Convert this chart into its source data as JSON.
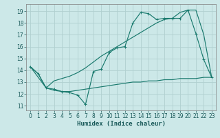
{
  "xlabel": "Humidex (Indice chaleur)",
  "bg_color": "#cce8e8",
  "grid_color": "#b0d0d0",
  "line_color": "#1a7a6e",
  "xlim": [
    -0.5,
    23.5
  ],
  "ylim": [
    10.6,
    19.6
  ],
  "xticks": [
    0,
    1,
    2,
    3,
    4,
    5,
    6,
    7,
    8,
    9,
    10,
    11,
    12,
    13,
    14,
    15,
    16,
    17,
    18,
    19,
    20,
    21,
    22,
    23
  ],
  "yticks": [
    11,
    12,
    13,
    14,
    15,
    16,
    17,
    18,
    19
  ],
  "line1_x": [
    0,
    1,
    2,
    3,
    4,
    5,
    6,
    7,
    8,
    9,
    10,
    11,
    12,
    13,
    14,
    15,
    16,
    17,
    18,
    19,
    20,
    21,
    22,
    23
  ],
  "line1_y": [
    14.3,
    13.7,
    12.5,
    12.4,
    12.2,
    12.1,
    11.9,
    11.1,
    13.9,
    14.1,
    15.5,
    15.9,
    16.0,
    18.0,
    18.9,
    18.8,
    18.3,
    18.4,
    18.4,
    18.4,
    19.1,
    17.1,
    14.9,
    13.4
  ],
  "line2_x": [
    0,
    2,
    3,
    4,
    5,
    6,
    7,
    8,
    9,
    10,
    11,
    12,
    13,
    14,
    15,
    16,
    17,
    18,
    19,
    20,
    21,
    22,
    23
  ],
  "line2_y": [
    14.3,
    12.5,
    13.1,
    13.3,
    13.5,
    13.8,
    14.2,
    14.7,
    15.2,
    15.6,
    16.0,
    16.4,
    16.8,
    17.2,
    17.6,
    18.0,
    18.3,
    18.4,
    18.9,
    19.1,
    19.1,
    17.0,
    13.4
  ],
  "line3_x": [
    0,
    1,
    2,
    3,
    4,
    5,
    6,
    7,
    8,
    9,
    10,
    11,
    12,
    13,
    14,
    15,
    16,
    17,
    18,
    19,
    20,
    21,
    22,
    23
  ],
  "line3_y": [
    14.3,
    13.7,
    12.5,
    12.3,
    12.2,
    12.2,
    12.3,
    12.4,
    12.5,
    12.6,
    12.7,
    12.8,
    12.9,
    13.0,
    13.0,
    13.1,
    13.1,
    13.2,
    13.2,
    13.3,
    13.3,
    13.3,
    13.4,
    13.4
  ]
}
